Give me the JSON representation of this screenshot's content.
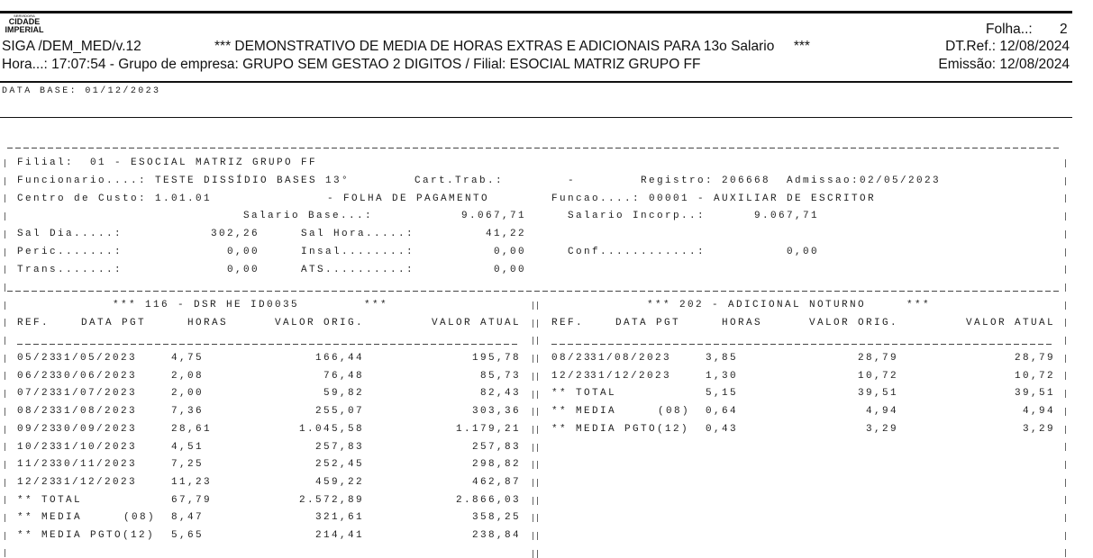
{
  "header": {
    "logo_top": "SERVIDORA",
    "logo_line1": "CIDADE",
    "logo_line2": "IMPERIAL",
    "program": "SIGA /DEM_MED/v.12",
    "title": "*** DEMONSTRATIVO DE MEDIA DE HORAS EXTRAS E ADICIONAIS PARA 13o Salario     ***",
    "hora_line": "Hora...: 17:07:54 - Grupo de empresa: GRUPO SEM GESTAO 2 DIGITOS / Filial: ESOCIAL MATRIZ GRUPO FF",
    "folha_label": "Folha..:",
    "folha_value": "2",
    "dtref": "DT.Ref.: 12/08/2024",
    "emissao": "Emissão: 12/08/2024"
  },
  "data_base": "DATA BASE: 01/12/2023",
  "employee": {
    "filial": "Filial:  01 - ESOCIAL MATRIZ GRUPO FF",
    "funcionario": "Funcionario....: TESTE DISSÍDIO BASES 13°",
    "cart_trab": "Cart.Trab.:",
    "cart_dash": "-",
    "registro": "Registro: 206668",
    "admissao": "Admissao:02/05/2023",
    "centro_custo": "Centro de Custo: 1.01.01",
    "folha_pag": "- FOLHA DE PAGAMENTO",
    "funcao": "Funcao....: 00001 - AUXILIAR DE ESCRITOR",
    "salario_base_label": "Salario Base...:",
    "salario_base": "9.067,71",
    "salario_incorp_label": "Salario Incorp..:",
    "salario_incorp": "9.067,71",
    "sal_dia_label": "Sal Dia.....:",
    "sal_dia": "302,26",
    "sal_hora_label": "Sal Hora.....:",
    "sal_hora": "41,22",
    "peric_label": "Peric.......:",
    "peric": "0,00",
    "insal_label": "Insal........:",
    "insal": "0,00",
    "conf_label": "Conf............:",
    "conf": "0,00",
    "trans_label": "Trans.......:",
    "trans": "0,00",
    "ats_label": "ATS..........:",
    "ats": "0,00"
  },
  "columns": [
    "REF.",
    "DATA PGT",
    "HORAS",
    "VALOR ORIG.",
    "VALOR ATUAL"
  ],
  "tables": [
    {
      "title": "*** 116 - DSR HE ID0035        ***",
      "rows": [
        [
          "05/23",
          "31/05/2023",
          "4,75",
          "166,44",
          "195,78"
        ],
        [
          "06/23",
          "30/06/2023",
          "2,08",
          "76,48",
          "85,73"
        ],
        [
          "07/23",
          "31/07/2023",
          "2,00",
          "59,82",
          "82,43"
        ],
        [
          "08/23",
          "31/08/2023",
          "7,36",
          "255,07",
          "303,36"
        ],
        [
          "09/23",
          "30/09/2023",
          "28,61",
          "1.045,58",
          "1.179,21"
        ],
        [
          "10/23",
          "31/10/2023",
          "4,51",
          "257,83",
          "257,83"
        ],
        [
          "11/23",
          "30/11/2023",
          "7,25",
          "252,45",
          "298,82"
        ],
        [
          "12/23",
          "31/12/2023",
          "11,23",
          "459,22",
          "462,87"
        ]
      ],
      "totals": [
        [
          "** TOTAL",
          "",
          "67,79",
          "2.572,89",
          "2.866,03"
        ],
        [
          "** MEDIA",
          "(08)",
          "8,47",
          "321,61",
          "358,25"
        ],
        [
          "** MEDIA PGTO(12)",
          "",
          "5,65",
          "214,41",
          "238,84"
        ]
      ]
    },
    {
      "title": "*** 202 - ADICIONAL NOTURNO     ***",
      "rows": [
        [
          "08/23",
          "31/08/2023",
          "3,85",
          "28,79",
          "28,79"
        ],
        [
          "12/23",
          "31/12/2023",
          "1,30",
          "10,72",
          "10,72"
        ]
      ],
      "totals": [
        [
          "** TOTAL",
          "",
          "5,15",
          "39,51",
          "39,51"
        ],
        [
          "** MEDIA",
          "(08)",
          "0,64",
          "4,94",
          "4,94"
        ],
        [
          "** MEDIA PGTO(12)",
          "",
          "0,43",
          "3,29",
          "3,29"
        ]
      ]
    }
  ]
}
